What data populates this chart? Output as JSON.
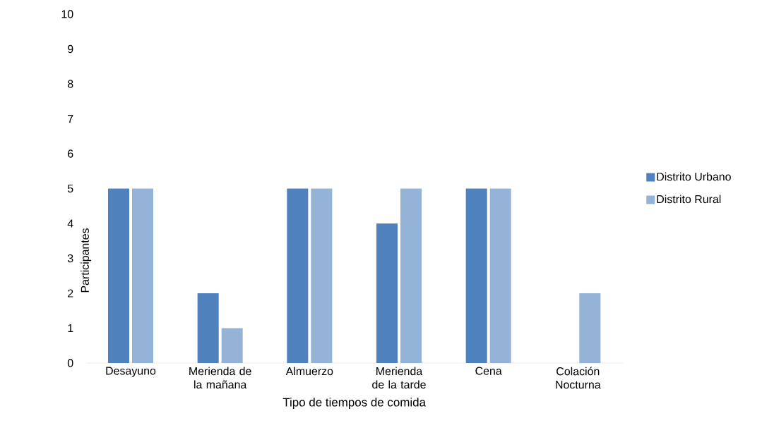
{
  "chart_data": {
    "type": "bar",
    "xlabel": "Tipo de tiempos de comida",
    "ylabel": "Participantes",
    "categories": [
      "Desayuno",
      "Merienda de la mañana",
      "Almuerzo",
      "Merienda de la tarde",
      "Cena",
      "Colación Nocturna"
    ],
    "series": [
      {
        "name": "Distrito Urbano",
        "color": "#4f81bd",
        "values": [
          5,
          2,
          5,
          4,
          5,
          0
        ]
      },
      {
        "name": "Distrito Rural",
        "color": "#95b3d7",
        "values": [
          5,
          1,
          5,
          5,
          5,
          2
        ]
      }
    ],
    "ylim": [
      0,
      10
    ],
    "yticks": [
      0,
      1,
      2,
      3,
      4,
      5,
      6,
      7,
      8,
      9,
      10
    ],
    "grid": false,
    "legend": "right"
  }
}
